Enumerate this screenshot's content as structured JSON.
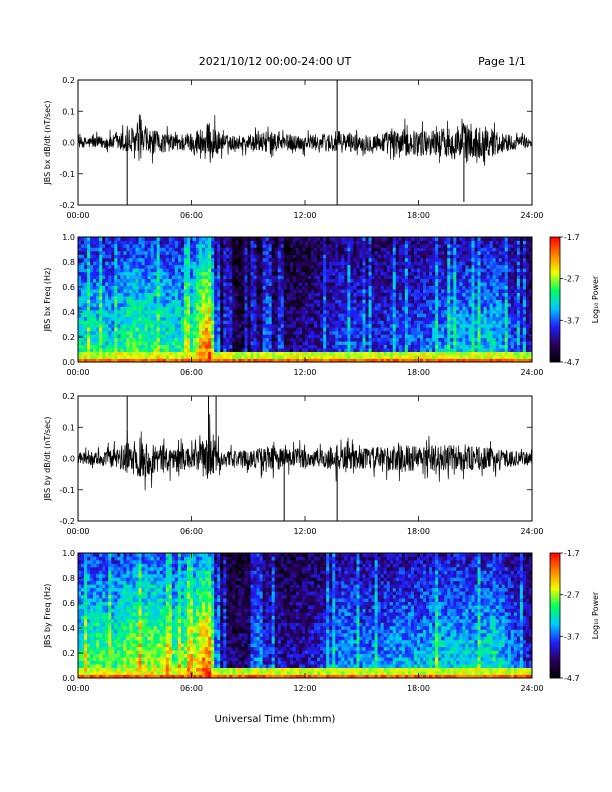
{
  "header": {
    "title": "2021/10/12  00:00-24:00 UT",
    "page": "Page 1/1"
  },
  "footer": {
    "xlabel": "Universal Time (hh:mm)"
  },
  "time_ticks": [
    "00:00",
    "06:00",
    "12:00",
    "18:00",
    "24:00"
  ],
  "colorbar": {
    "label": "Log₁₀ Power",
    "ticks": [
      "-1.7",
      "-2.7",
      "-3.7",
      "-4.7"
    ],
    "range": [
      -4.7,
      -1.7
    ],
    "colormap": [
      "#000000",
      "#2a0060",
      "#2020ff",
      "#00c8ff",
      "#00ff60",
      "#f0ff00",
      "#ff8000",
      "#ff0000"
    ]
  },
  "chart_data": [
    {
      "type": "line",
      "name": "bx-timeseries",
      "ylabel": "JBS bx dB/dt (nT/sec)",
      "xlim": [
        0,
        24
      ],
      "ylim": [
        -0.2,
        0.2
      ],
      "yticks": [
        "0.2",
        "0.1",
        "0.0",
        "-0.1",
        "-0.2"
      ],
      "ytick_values": [
        0.2,
        0.1,
        0.0,
        -0.1,
        -0.2
      ],
      "envelope": {
        "hours": [
          0,
          1,
          2,
          2.6,
          3,
          3.5,
          4,
          5,
          6,
          6.5,
          7,
          7.5,
          8,
          9,
          10,
          11,
          12,
          13,
          13.7,
          14,
          15,
          16,
          17,
          18,
          19,
          20,
          20.5,
          21,
          22,
          23,
          24
        ],
        "amplitude": [
          0.03,
          0.035,
          0.045,
          0.08,
          0.1,
          0.09,
          0.07,
          0.05,
          0.06,
          0.1,
          0.12,
          0.06,
          0.04,
          0.045,
          0.06,
          0.05,
          0.045,
          0.05,
          0.07,
          0.06,
          0.05,
          0.06,
          0.08,
          0.07,
          0.08,
          0.1,
          0.12,
          0.1,
          0.08,
          0.04,
          0.03
        ]
      },
      "spikes": [
        {
          "hour": 2.6,
          "value": -0.2
        },
        {
          "hour": 13.7,
          "value": 0.2
        },
        {
          "hour": 13.7,
          "value": -0.2
        },
        {
          "hour": 20.4,
          "value": -0.19
        }
      ]
    },
    {
      "type": "heatmap",
      "name": "bx-spectrogram",
      "ylabel": "JBS bx Freq (Hz)",
      "xlim": [
        0,
        24
      ],
      "ylim": [
        0.0,
        1.0
      ],
      "yticks": [
        "1.0",
        "0.8",
        "0.6",
        "0.4",
        "0.2",
        "0.0"
      ],
      "ytick_values": [
        1.0,
        0.8,
        0.6,
        0.4,
        0.2,
        0.0
      ],
      "zlim": [
        -4.7,
        -1.7
      ],
      "activity": {
        "hours": [
          0,
          1,
          2,
          2.5,
          3,
          3.5,
          4,
          5,
          6,
          6.5,
          7,
          7.3,
          7.6,
          8,
          9,
          10,
          11,
          12,
          13,
          14,
          15,
          16,
          17,
          18,
          19,
          20,
          21,
          22,
          23,
          24
        ],
        "level": [
          0.55,
          0.55,
          0.5,
          0.6,
          0.65,
          0.6,
          0.6,
          0.55,
          0.6,
          0.85,
          0.95,
          0.3,
          0.15,
          0.12,
          0.12,
          0.2,
          0.15,
          0.2,
          0.25,
          0.35,
          0.3,
          0.3,
          0.35,
          0.35,
          0.4,
          0.45,
          0.45,
          0.5,
          0.35,
          0.2
        ]
      }
    },
    {
      "type": "line",
      "name": "by-timeseries",
      "ylabel": "JBS by dB/dt (nT/sec)",
      "xlim": [
        0,
        24
      ],
      "ylim": [
        -0.2,
        0.2
      ],
      "yticks": [
        "0.2",
        "0.1",
        "0.0",
        "-0.1",
        "-0.2"
      ],
      "ytick_values": [
        0.2,
        0.1,
        0.0,
        -0.1,
        -0.2
      ],
      "envelope": {
        "hours": [
          0,
          1,
          2,
          2.5,
          3,
          3.5,
          4,
          5,
          6,
          6.5,
          7,
          7.5,
          8,
          9,
          10,
          11,
          12,
          13,
          13.7,
          14,
          15,
          16,
          17,
          18,
          19,
          20,
          21,
          22,
          23,
          24
        ],
        "amplitude": [
          0.035,
          0.04,
          0.06,
          0.09,
          0.1,
          0.11,
          0.09,
          0.07,
          0.06,
          0.1,
          0.15,
          0.06,
          0.045,
          0.05,
          0.07,
          0.065,
          0.06,
          0.06,
          0.08,
          0.07,
          0.06,
          0.07,
          0.08,
          0.075,
          0.08,
          0.08,
          0.07,
          0.06,
          0.045,
          0.035
        ]
      },
      "spikes": [
        {
          "hour": 2.6,
          "value": 0.2
        },
        {
          "hour": 6.9,
          "value": 0.2
        },
        {
          "hour": 7.3,
          "value": 0.2
        },
        {
          "hour": 10.9,
          "value": -0.2
        },
        {
          "hour": 13.7,
          "value": -0.2
        }
      ]
    },
    {
      "type": "heatmap",
      "name": "by-spectrogram",
      "ylabel": "JBS by Freq (Hz)",
      "xlim": [
        0,
        24
      ],
      "ylim": [
        0.0,
        1.0
      ],
      "yticks": [
        "1.0",
        "0.8",
        "0.6",
        "0.4",
        "0.2",
        "0.0"
      ],
      "ytick_values": [
        1.0,
        0.8,
        0.6,
        0.4,
        0.2,
        0.0
      ],
      "zlim": [
        -4.7,
        -1.7
      ],
      "activity": {
        "hours": [
          0,
          1,
          2,
          2.5,
          3,
          3.5,
          4,
          5,
          6,
          6.5,
          7,
          7.3,
          7.6,
          8,
          9,
          10,
          11,
          12,
          13,
          14,
          15,
          16,
          17,
          18,
          19,
          20,
          21,
          22,
          23,
          24
        ],
        "level": [
          0.6,
          0.65,
          0.6,
          0.7,
          0.75,
          0.7,
          0.75,
          0.65,
          0.7,
          0.9,
          0.95,
          0.35,
          0.18,
          0.15,
          0.15,
          0.3,
          0.2,
          0.25,
          0.3,
          0.45,
          0.4,
          0.4,
          0.45,
          0.45,
          0.5,
          0.5,
          0.5,
          0.55,
          0.4,
          0.25
        ]
      }
    }
  ]
}
